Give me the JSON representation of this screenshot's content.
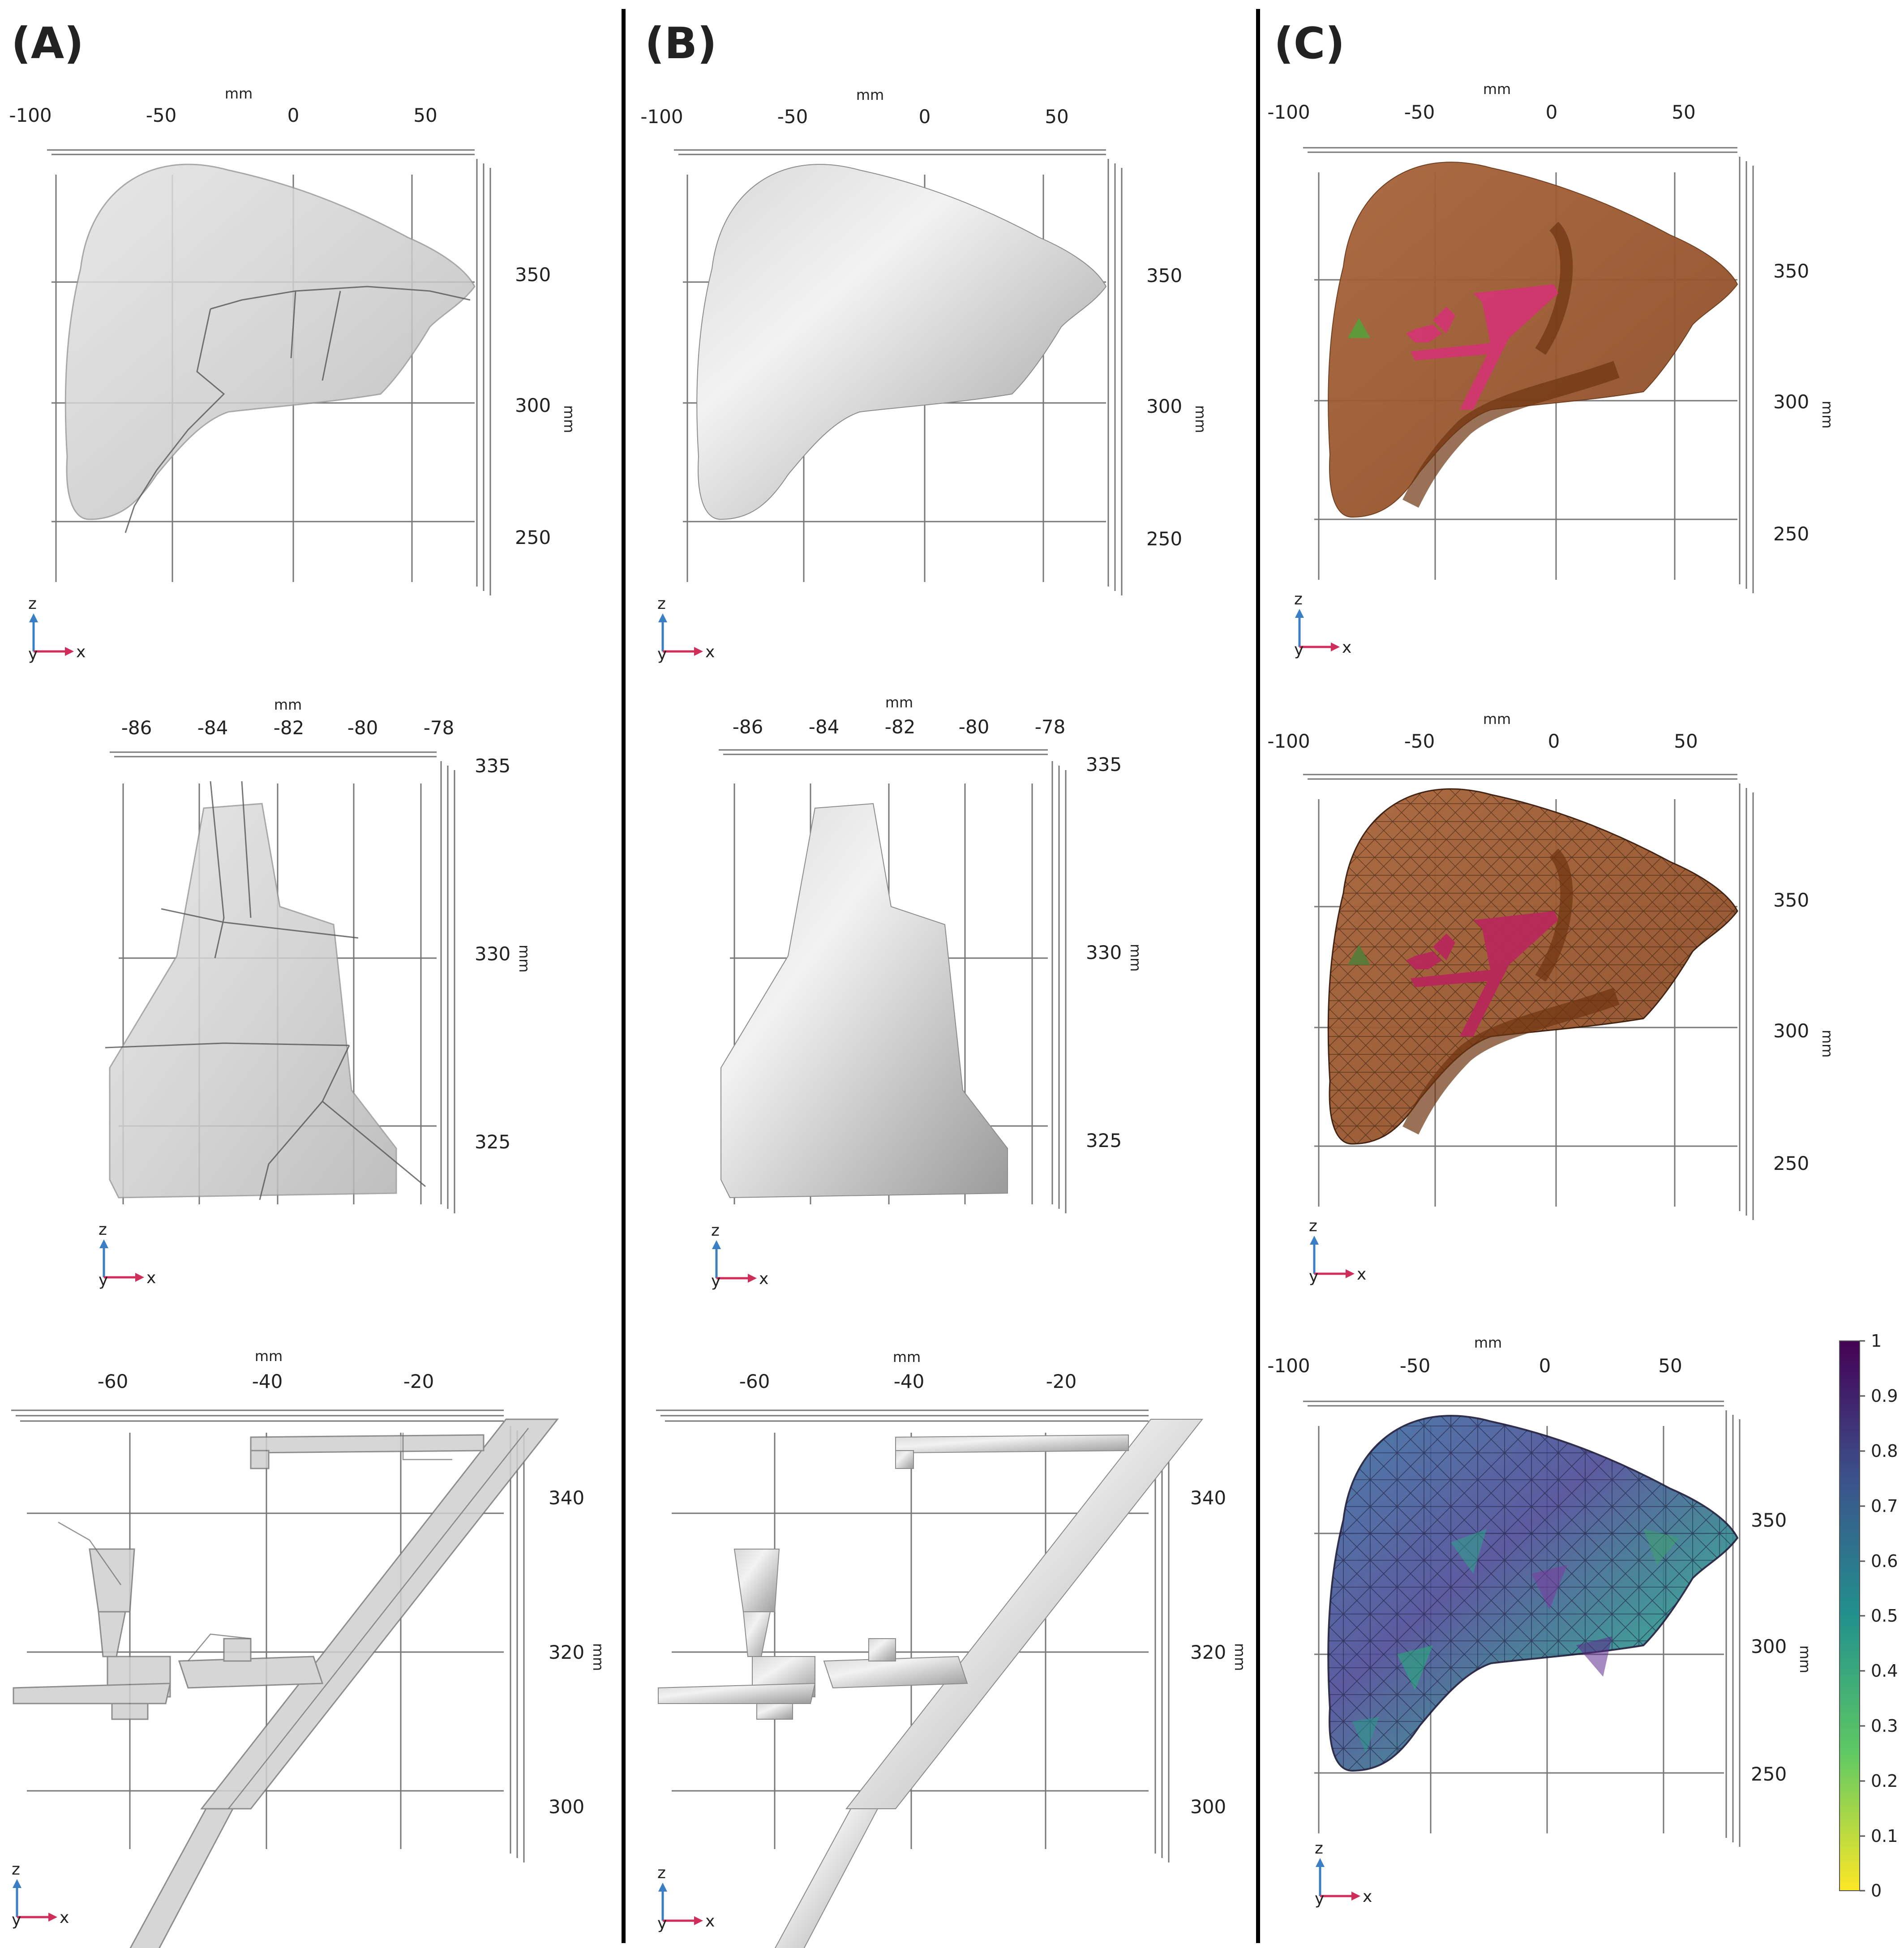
{
  "panels": [
    {
      "label": "(A)"
    },
    {
      "label": "(B)"
    },
    {
      "label": "(C)"
    }
  ],
  "unit": "mm",
  "axes": {
    "z": "z",
    "y": "y",
    "x": "x"
  },
  "liver_ticks": {
    "x": [
      "-100",
      "-50",
      "0",
      "50"
    ],
    "z": [
      "350",
      "300",
      "250"
    ]
  },
  "detail_ticks": {
    "x": [
      "-86",
      "-84",
      "-82",
      "-80",
      "-78"
    ],
    "z": [
      "335",
      "330",
      "325"
    ]
  },
  "vessel_ticks": {
    "x": [
      "-60",
      "-40",
      "-20"
    ],
    "z": [
      "340",
      "320",
      "300"
    ]
  },
  "colorbar": {
    "ticks": [
      "1",
      "0.9",
      "0.8",
      "0.7",
      "0.6",
      "0.5",
      "0.4",
      "0.3",
      "0.2",
      "0.1",
      "0"
    ]
  },
  "colors": {
    "liver_gray": "#c9c9c9",
    "liver_orange": "#a05a2c",
    "vessel_magenta": "#d4306e",
    "tumor_green": "#5f9a3a",
    "divider": "#000000"
  }
}
